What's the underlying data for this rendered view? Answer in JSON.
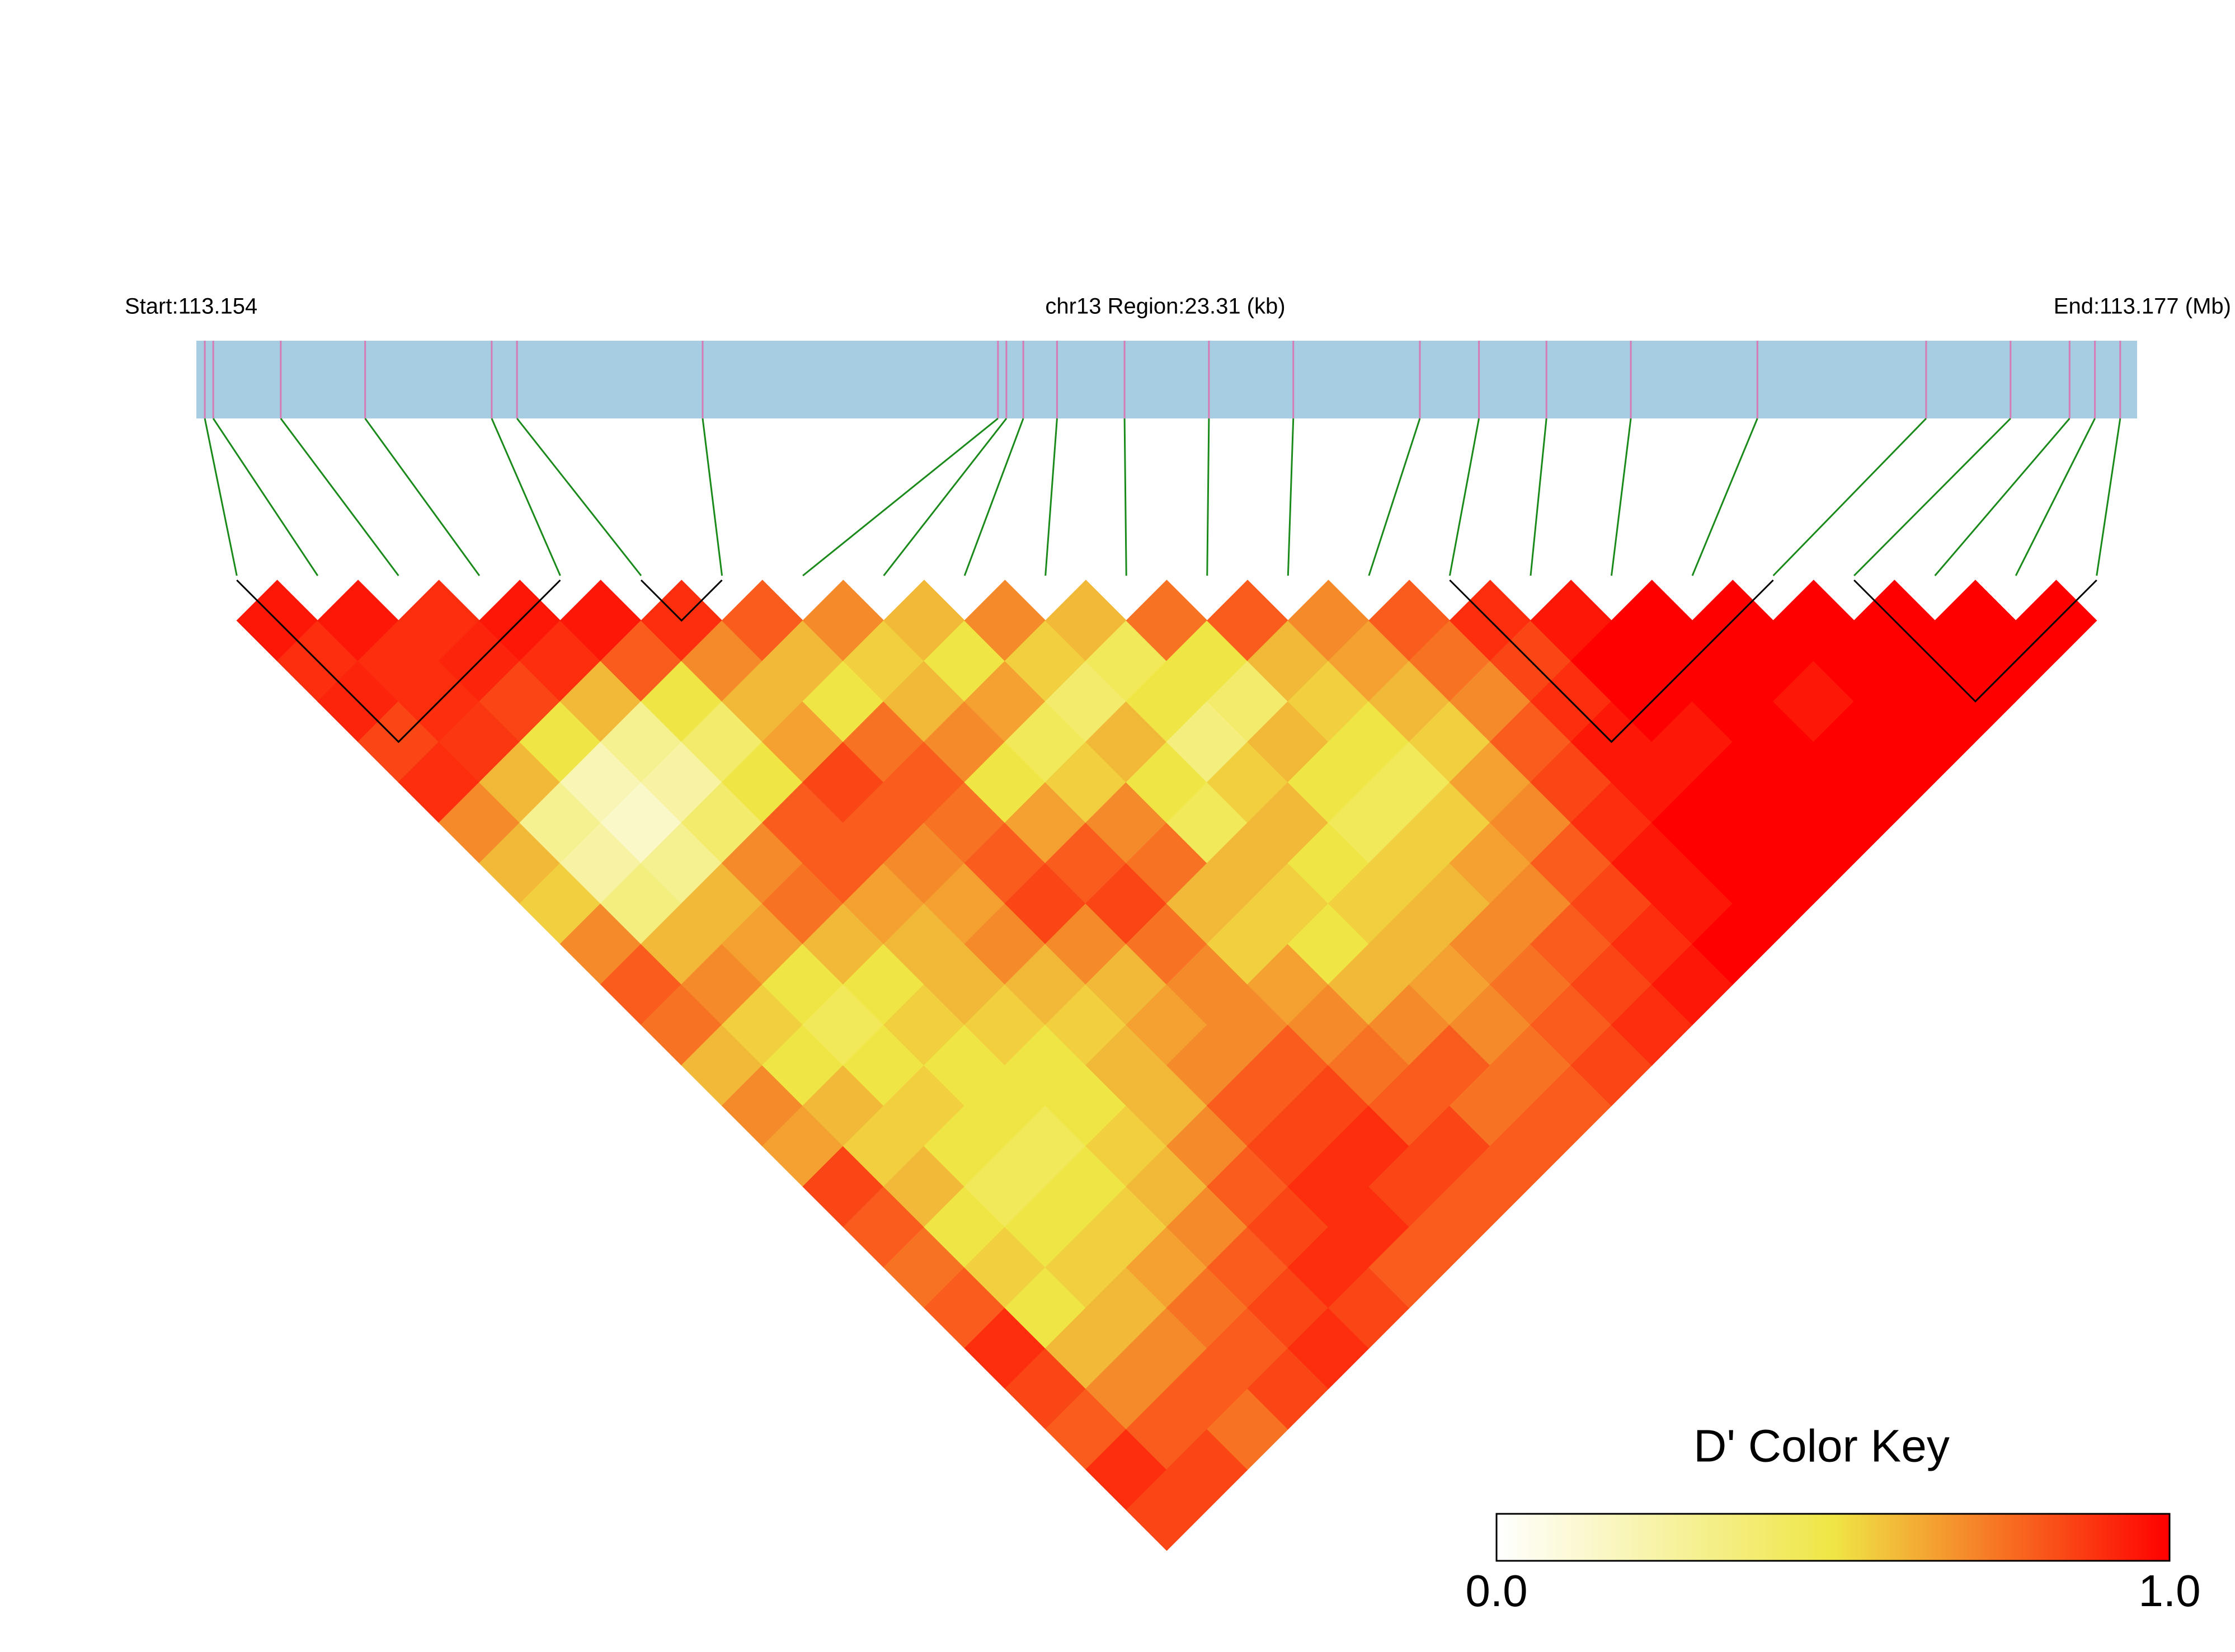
{
  "chart_data": {
    "type": "ld_heatmap",
    "start_label": "Start:113.154",
    "region_label": "chr13 Region:23.31 (kb)",
    "end_label": "End:113.177 (Mb)",
    "key_title": "D' Color Key",
    "key_ticks": [
      {
        "value": 0,
        "label": "0.0"
      },
      {
        "value": 1,
        "label": "1.0"
      }
    ],
    "key_lim": [
      0,
      1
    ],
    "colorscale": [
      "#ffffff",
      "#efe646",
      "#ff0000"
    ],
    "xlim": [
      113.154,
      113.177
    ],
    "track_color": "#a6cde2",
    "snp_line_color": "#d67bb5",
    "connector_color": "#1a8a1a",
    "snp_positions": [
      113.1541,
      113.1542,
      113.155,
      113.156,
      113.1575,
      113.1578,
      113.16,
      113.1635,
      113.1636,
      113.1638,
      113.1642,
      113.165,
      113.166,
      113.167,
      113.1685,
      113.1692,
      113.17,
      113.171,
      113.1725,
      113.1745,
      113.1755,
      113.1762,
      113.1765,
      113.1768
    ],
    "blocks": [
      [
        0,
        4
      ],
      [
        5,
        6
      ],
      [
        15,
        19
      ],
      [
        20,
        23
      ]
    ],
    "ld": [
      [
        0.95,
        0.9,
        0.92,
        0.85,
        0.9,
        0.7,
        0.6,
        0.55,
        0.7,
        0.8,
        0.75,
        0.6,
        0.7,
        0.65,
        0.85,
        0.8,
        0.75,
        0.8,
        0.9,
        0.85,
        0.8,
        0.9,
        0.85
      ],
      [
        0.95,
        0.9,
        0.9,
        0.88,
        0.6,
        0.3,
        0.25,
        0.35,
        0.6,
        0.7,
        0.55,
        0.5,
        0.6,
        0.55,
        0.6,
        0.5,
        0.55,
        0.5,
        0.6,
        0.7,
        0.8,
        0.85
      ],
      [
        0.9,
        0.92,
        0.85,
        0.5,
        0.2,
        0.15,
        0.3,
        0.6,
        0.65,
        0.5,
        0.45,
        0.5,
        0.55,
        0.5,
        0.45,
        0.5,
        0.55,
        0.6,
        0.7,
        0.8,
        0.75
      ],
      [
        0.95,
        0.9,
        0.6,
        0.3,
        0.25,
        0.4,
        0.7,
        0.75,
        0.6,
        0.5,
        0.55,
        0.5,
        0.5,
        0.45,
        0.5,
        0.55,
        0.65,
        0.75,
        0.8,
        0.85
      ],
      [
        0.95,
        0.8,
        0.5,
        0.4,
        0.5,
        0.8,
        0.8,
        0.65,
        0.6,
        0.6,
        0.55,
        0.5,
        0.5,
        0.55,
        0.6,
        0.7,
        0.8,
        0.85,
        0.9
      ],
      [
        0.9,
        0.7,
        0.6,
        0.65,
        0.85,
        0.8,
        0.7,
        0.65,
        0.7,
        0.6,
        0.55,
        0.6,
        0.6,
        0.7,
        0.8,
        0.85,
        0.9,
        0.85
      ],
      [
        0.8,
        0.6,
        0.5,
        0.75,
        0.8,
        0.75,
        0.8,
        0.85,
        0.7,
        0.6,
        0.65,
        0.7,
        0.8,
        0.85,
        0.9,
        0.9,
        0.8
      ],
      [
        0.7,
        0.55,
        0.6,
        0.7,
        0.5,
        0.65,
        0.8,
        0.85,
        0.75,
        0.7,
        0.7,
        0.8,
        0.85,
        0.9,
        0.85,
        0.8
      ],
      [
        0.6,
        0.5,
        0.65,
        0.45,
        0.55,
        0.7,
        0.75,
        0.6,
        0.55,
        0.65,
        0.7,
        0.75,
        0.8,
        0.85,
        0.8
      ],
      [
        0.7,
        0.55,
        0.4,
        0.6,
        0.5,
        0.45,
        0.6,
        0.55,
        0.5,
        0.6,
        0.7,
        0.8,
        0.75,
        0.8
      ],
      [
        0.6,
        0.45,
        0.5,
        0.35,
        0.55,
        0.6,
        0.5,
        0.55,
        0.6,
        0.65,
        0.7,
        0.75,
        0.8
      ],
      [
        0.75,
        0.5,
        0.4,
        0.6,
        0.5,
        0.45,
        0.55,
        0.6,
        0.7,
        0.75,
        0.8,
        0.85
      ],
      [
        0.8,
        0.6,
        0.55,
        0.5,
        0.45,
        0.55,
        0.65,
        0.7,
        0.8,
        0.85,
        0.9
      ],
      [
        0.7,
        0.65,
        0.6,
        0.55,
        0.65,
        0.7,
        0.8,
        0.85,
        0.9,
        0.95
      ],
      [
        0.8,
        0.75,
        0.7,
        0.8,
        0.85,
        0.9,
        0.95,
        0.95,
        1
      ],
      [
        0.9,
        0.85,
        0.9,
        0.95,
        0.95,
        1,
        1,
        1
      ],
      [
        0.95,
        1,
        1,
        0.95,
        1,
        1,
        1
      ],
      [
        1,
        1,
        1,
        1,
        1,
        1
      ],
      [
        1,
        1,
        0.95,
        1,
        1
      ],
      [
        1,
        1,
        1,
        1
      ],
      [
        1,
        1,
        1
      ],
      [
        1,
        1
      ],
      [
        1
      ]
    ]
  }
}
